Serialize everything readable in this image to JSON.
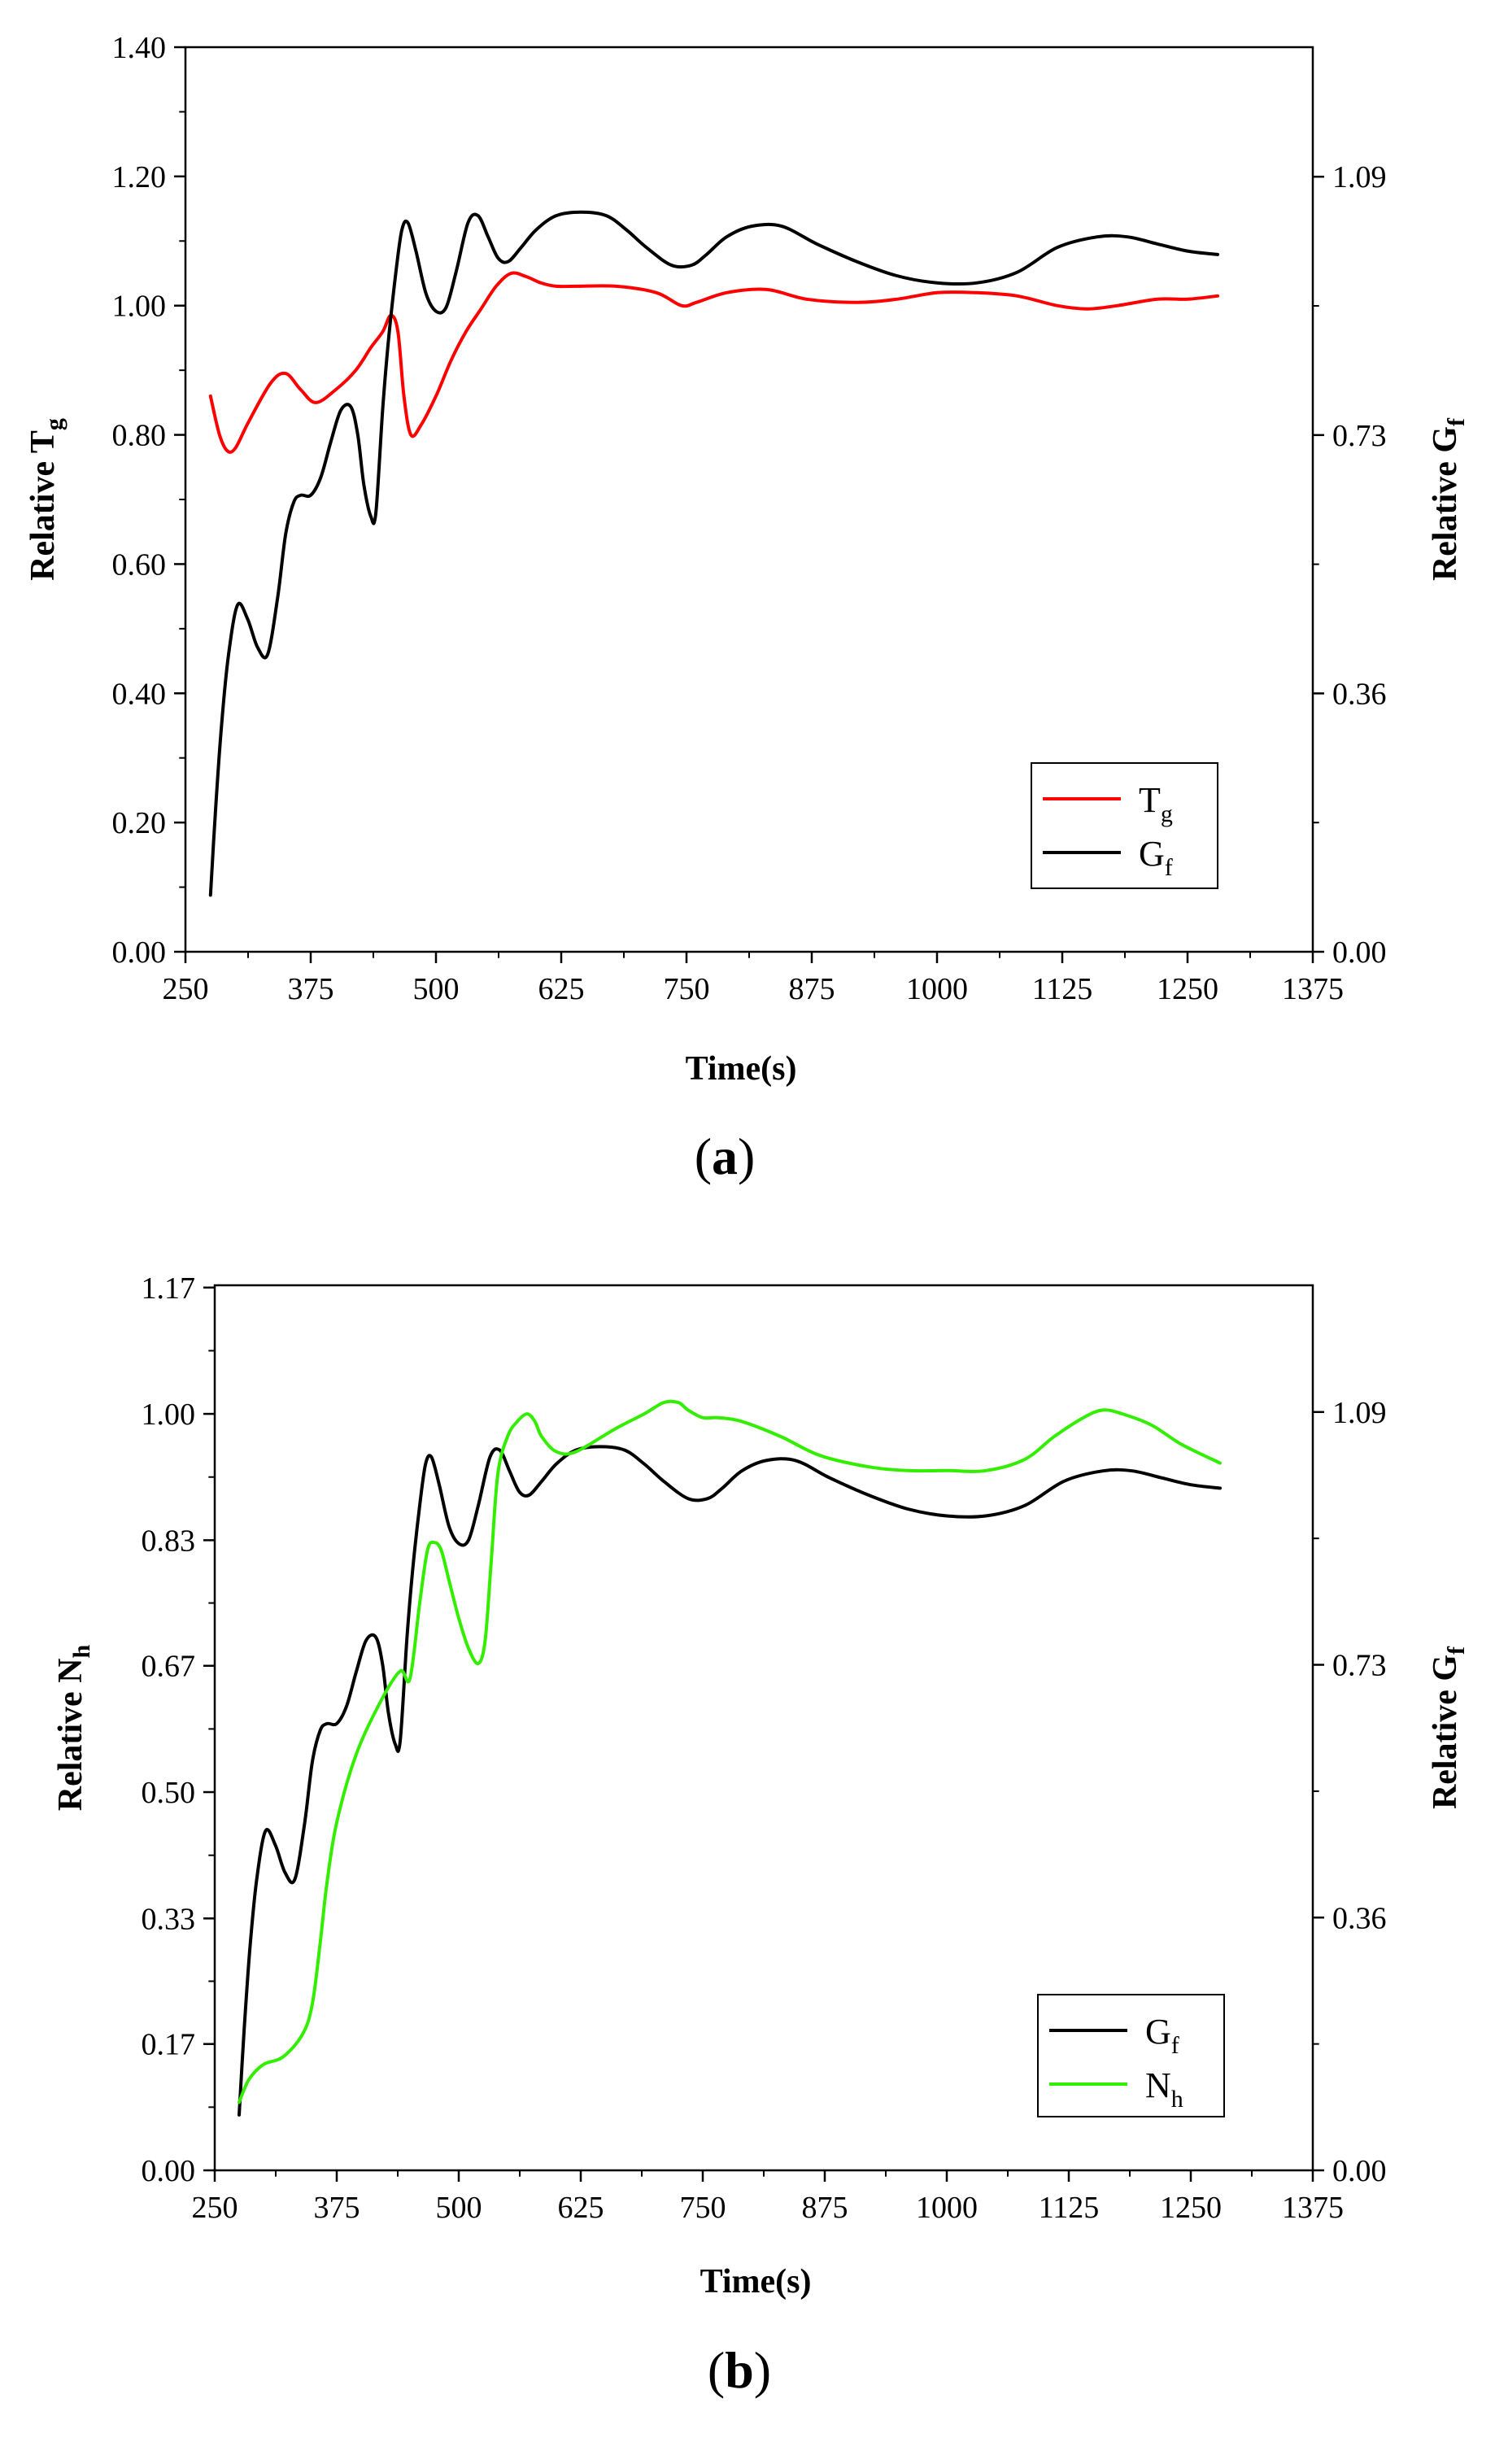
{
  "chart_data": [
    {
      "type": "line",
      "panel_label": "(a)",
      "panel_letter": "a",
      "xlabel": "Time(s)",
      "ylabel_left": {
        "base": "Relative T",
        "sub": "g"
      },
      "ylabel_right": {
        "base": "Relative G",
        "sub": "f"
      },
      "x_ticks": [
        "250",
        "375",
        "500",
        "625",
        "750",
        "875",
        "1000",
        "1125",
        "1250",
        "1375"
      ],
      "x_tick_values": [
        250,
        375,
        500,
        625,
        750,
        875,
        1000,
        1125,
        1250,
        1375
      ],
      "y_left_ticks": [
        "0.00",
        "0.20",
        "0.40",
        "0.60",
        "0.80",
        "1.00",
        "1.20",
        "1.40"
      ],
      "y_left_tick_values": [
        0,
        0.2,
        0.4,
        0.6,
        0.8,
        1.0,
        1.2,
        1.4
      ],
      "y_right_ticks": [
        "0.00",
        "0.36",
        "0.73",
        "1.09"
      ],
      "y_right_tick_values": [
        0,
        0.365,
        0.73,
        1.095
      ],
      "xlim": [
        250,
        1375
      ],
      "ylim_left": [
        0,
        1.4
      ],
      "ylim_right": [
        0,
        1.278
      ],
      "legend_position": "bottom-right",
      "series": [
        {
          "name": "T",
          "sub": "g",
          "color": "#ff0000",
          "axis": "left",
          "x": [
            275,
            284,
            292,
            300,
            313,
            335,
            350,
            365,
            380,
            400,
            420,
            435,
            447,
            455,
            462,
            468,
            475,
            485,
            500,
            515,
            530,
            545,
            560,
            575,
            590,
            605,
            620,
            640,
            680,
            720,
            745,
            760,
            790,
            830,
            870,
            920,
            960,
            1000,
            1040,
            1080,
            1120,
            1150,
            1180,
            1220,
            1250,
            1280
          ],
          "values": [
            0.86,
            0.8,
            0.775,
            0.78,
            0.82,
            0.88,
            0.895,
            0.87,
            0.85,
            0.87,
            0.9,
            0.935,
            0.96,
            0.985,
            0.96,
            0.86,
            0.8,
            0.815,
            0.86,
            0.915,
            0.96,
            0.995,
            1.03,
            1.05,
            1.045,
            1.035,
            1.03,
            1.03,
            1.03,
            1.02,
            1.0,
            1.005,
            1.02,
            1.025,
            1.01,
            1.005,
            1.01,
            1.02,
            1.02,
            1.015,
            1.0,
            0.995,
            1.0,
            1.01,
            1.01,
            1.015
          ]
        },
        {
          "name": "G",
          "sub": "f",
          "color": "#000000",
          "axis": "right",
          "x": [
            275,
            280,
            286,
            293,
            302,
            312,
            322,
            332,
            342,
            350,
            358,
            365,
            375,
            385,
            395,
            405,
            415,
            422,
            428,
            435,
            440,
            447,
            453,
            460,
            466,
            472,
            480,
            490,
            500,
            510,
            520,
            532,
            542,
            552,
            562,
            572,
            585,
            600,
            620,
            645,
            670,
            690,
            710,
            735,
            755,
            770,
            790,
            815,
            845,
            880,
            920,
            960,
            1000,
            1040,
            1080,
            1120,
            1160,
            1190,
            1220,
            1250,
            1280
          ],
          "values": [
            0.08,
            0.2,
            0.32,
            0.42,
            0.49,
            0.47,
            0.43,
            0.42,
            0.5,
            0.59,
            0.635,
            0.645,
            0.645,
            0.67,
            0.72,
            0.765,
            0.77,
            0.73,
            0.66,
            0.615,
            0.62,
            0.77,
            0.87,
            0.96,
            1.02,
            1.03,
            0.99,
            0.93,
            0.905,
            0.91,
            0.96,
            1.03,
            1.04,
            1.01,
            0.98,
            0.975,
            0.995,
            1.02,
            1.04,
            1.045,
            1.04,
            1.02,
            0.995,
            0.97,
            0.97,
            0.985,
            1.01,
            1.025,
            1.025,
            1.0,
            0.975,
            0.955,
            0.945,
            0.945,
            0.96,
            0.995,
            1.01,
            1.01,
            1.0,
            0.99,
            0.985
          ]
        }
      ]
    },
    {
      "type": "line",
      "panel_label": "(b)",
      "panel_letter": "b",
      "xlabel": "Time(s)",
      "ylabel_left": {
        "base": "Relative N",
        "sub": "h"
      },
      "ylabel_right": {
        "base": "Relative G",
        "sub": "f"
      },
      "x_ticks": [
        "250",
        "375",
        "500",
        "625",
        "750",
        "875",
        "1000",
        "1125",
        "1250",
        "1375"
      ],
      "x_tick_values": [
        250,
        375,
        500,
        625,
        750,
        875,
        1000,
        1125,
        1250,
        1375
      ],
      "y_left_ticks": [
        "0.00",
        "0.17",
        "0.33",
        "0.50",
        "0.67",
        "0.83",
        "1.00",
        "1.17"
      ],
      "y_left_tick_values": [
        0,
        0.167,
        0.333,
        0.5,
        0.667,
        0.833,
        1.0,
        1.167
      ],
      "y_right_ticks": [
        "0.00",
        "0.36",
        "0.73",
        "1.09"
      ],
      "y_right_tick_values": [
        0,
        0.365,
        0.73,
        1.095
      ],
      "xlim": [
        250,
        1375
      ],
      "ylim_left": [
        0,
        1.17
      ],
      "ylim_right": [
        0,
        1.278
      ],
      "legend_position": "bottom-right",
      "series": [
        {
          "name": "G",
          "sub": "f",
          "color": "#000000",
          "axis": "right",
          "x": [
            275,
            280,
            286,
            293,
            302,
            312,
            322,
            332,
            342,
            350,
            358,
            365,
            375,
            385,
            395,
            405,
            415,
            422,
            428,
            435,
            440,
            447,
            453,
            460,
            466,
            472,
            480,
            490,
            500,
            510,
            520,
            532,
            542,
            552,
            562,
            572,
            585,
            600,
            620,
            645,
            670,
            690,
            710,
            735,
            755,
            770,
            790,
            815,
            845,
            880,
            920,
            960,
            1000,
            1040,
            1080,
            1120,
            1160,
            1190,
            1220,
            1250,
            1280
          ],
          "values": [
            0.08,
            0.2,
            0.32,
            0.42,
            0.49,
            0.47,
            0.43,
            0.42,
            0.5,
            0.59,
            0.635,
            0.645,
            0.645,
            0.67,
            0.72,
            0.765,
            0.77,
            0.73,
            0.66,
            0.615,
            0.62,
            0.77,
            0.87,
            0.96,
            1.02,
            1.03,
            0.99,
            0.93,
            0.905,
            0.91,
            0.96,
            1.03,
            1.04,
            1.01,
            0.98,
            0.975,
            0.995,
            1.02,
            1.04,
            1.045,
            1.04,
            1.02,
            0.995,
            0.97,
            0.97,
            0.985,
            1.01,
            1.025,
            1.025,
            1.0,
            0.975,
            0.955,
            0.945,
            0.945,
            0.96,
            0.995,
            1.01,
            1.01,
            1.0,
            0.99,
            0.985
          ]
        },
        {
          "name": "N",
          "sub": "h",
          "color": "#33ee00",
          "axis": "left",
          "x": [
            275,
            285,
            300,
            320,
            340,
            350,
            358,
            365,
            375,
            395,
            420,
            440,
            450,
            460,
            468,
            475,
            482,
            490,
            500,
            510,
            520,
            527,
            533,
            540,
            550,
            560,
            570,
            578,
            585,
            600,
            620,
            660,
            690,
            710,
            725,
            735,
            750,
            765,
            790,
            830,
            870,
            920,
            960,
            1000,
            1040,
            1080,
            1110,
            1140,
            1160,
            1180,
            1210,
            1240,
            1280
          ],
          "values": [
            0.09,
            0.12,
            0.14,
            0.15,
            0.18,
            0.22,
            0.3,
            0.38,
            0.46,
            0.55,
            0.62,
            0.66,
            0.65,
            0.75,
            0.82,
            0.83,
            0.82,
            0.78,
            0.73,
            0.69,
            0.67,
            0.7,
            0.8,
            0.92,
            0.97,
            0.99,
            1.0,
            0.99,
            0.97,
            0.95,
            0.95,
            0.98,
            1.0,
            1.015,
            1.015,
            1.005,
            0.995,
            0.995,
            0.99,
            0.97,
            0.945,
            0.93,
            0.925,
            0.925,
            0.925,
            0.94,
            0.97,
            0.995,
            1.005,
            1.0,
            0.985,
            0.96,
            0.935
          ]
        }
      ]
    }
  ]
}
